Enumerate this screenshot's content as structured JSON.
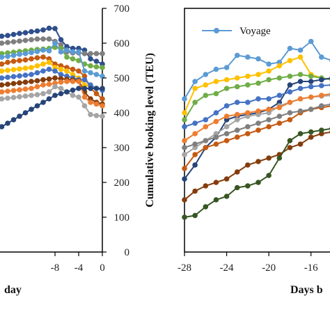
{
  "chart_data": [
    {
      "type": "line",
      "panel": "left",
      "xlabel": "day",
      "ylabel": "",
      "xlim": [
        -17.3,
        0
      ],
      "ylim": [
        0,
        700
      ],
      "xticks": [
        "-8",
        "-4",
        "0"
      ],
      "x": [
        -17,
        -16,
        -15,
        -14,
        -13,
        -12,
        -11,
        -10,
        -9,
        -8,
        -7,
        -6,
        -5,
        -4,
        -3,
        -2,
        -1,
        0
      ],
      "series": [
        {
          "color": "#2e4e8c",
          "values": [
            620,
            622,
            625,
            628,
            630,
            633,
            635,
            638,
            643,
            642,
            610,
            590,
            585,
            585,
            580,
            555,
            548,
            540
          ]
        },
        {
          "color": "#7f7f7f",
          "values": [
            600,
            602,
            604,
            606,
            608,
            610,
            612,
            612,
            612,
            605,
            595,
            575,
            572,
            572,
            570,
            570,
            570,
            570
          ]
        },
        {
          "color": "#70ad47",
          "values": [
            570,
            572,
            574,
            576,
            578,
            580,
            582,
            583,
            585,
            588,
            585,
            560,
            555,
            550,
            540,
            535,
            532,
            530
          ]
        },
        {
          "color": "#5b9bd5",
          "values": [
            560,
            562,
            565,
            568,
            570,
            573,
            576,
            580,
            578,
            600,
            575,
            580,
            575,
            575,
            520,
            515,
            510,
            505
          ]
        },
        {
          "color": "#c55a11",
          "values": [
            540,
            545,
            548,
            550,
            552,
            555,
            558,
            560,
            555,
            540,
            535,
            530,
            525,
            520,
            505,
            470,
            455,
            440
          ]
        },
        {
          "color": "#ffc000",
          "values": [
            520,
            522,
            524,
            526,
            528,
            530,
            535,
            540,
            545,
            530,
            525,
            520,
            510,
            500,
            480,
            475,
            470,
            470
          ]
        },
        {
          "color": "#4472c4",
          "values": [
            500,
            502,
            504,
            506,
            508,
            510,
            515,
            520,
            525,
            520,
            510,
            505,
            500,
            495,
            495,
            480,
            470,
            465
          ]
        },
        {
          "color": "#843c0c",
          "values": [
            480,
            482,
            484,
            486,
            488,
            490,
            492,
            495,
            497,
            500,
            498,
            496,
            494,
            492,
            460,
            440,
            430,
            425
          ]
        },
        {
          "color": "#ed7d31",
          "values": [
            460,
            462,
            464,
            466,
            468,
            470,
            475,
            480,
            482,
            485,
            488,
            490,
            490,
            490,
            445,
            430,
            425,
            420
          ]
        },
        {
          "color": "#a5a5a5",
          "values": [
            440,
            442,
            444,
            446,
            448,
            450,
            452,
            455,
            460,
            475,
            470,
            460,
            450,
            445,
            420,
            395,
            392,
            390
          ]
        },
        {
          "color": "#264478",
          "values": [
            360,
            370,
            380,
            390,
            400,
            410,
            420,
            430,
            440,
            450,
            455,
            460,
            465,
            470,
            470,
            470,
            470,
            470
          ]
        }
      ]
    },
    {
      "type": "line",
      "panel": "right",
      "xlabel": "Days b",
      "ylabel": "Cumulative booking level (TEU)",
      "xlim": [
        -28,
        -13.8
      ],
      "ylim": [
        0,
        700
      ],
      "xticks": [
        "-28",
        "-24",
        "-20",
        "-16"
      ],
      "yticks": [
        "0",
        "100",
        "200",
        "300",
        "400",
        "500",
        "600",
        "700"
      ],
      "legend": {
        "label": "Voyage",
        "position": "top-left"
      },
      "x": [
        -28,
        -27,
        -26,
        -25,
        -24,
        -23,
        -22,
        -21,
        -20,
        -19,
        -18,
        -17,
        -16,
        -15,
        -14
      ],
      "series": [
        {
          "color": "#5b9bd5",
          "values": [
            440,
            490,
            510,
            525,
            530,
            565,
            560,
            555,
            540,
            545,
            585,
            580,
            605,
            560,
            550
          ]
        },
        {
          "color": "#ffc000",
          "values": [
            400,
            470,
            480,
            490,
            495,
            500,
            505,
            510,
            520,
            535,
            550,
            560,
            510,
            500,
            495
          ]
        },
        {
          "color": "#70ad47",
          "values": [
            380,
            430,
            450,
            455,
            470,
            475,
            480,
            485,
            495,
            500,
            505,
            510,
            505,
            500,
            495
          ]
        },
        {
          "color": "#264478",
          "values": [
            210,
            250,
            300,
            330,
            380,
            390,
            395,
            400,
            410,
            430,
            480,
            490,
            490,
            495,
            500
          ]
        },
        {
          "color": "#4472c4",
          "values": [
            360,
            370,
            380,
            400,
            420,
            430,
            430,
            440,
            440,
            450,
            460,
            470,
            475,
            478,
            480
          ]
        },
        {
          "color": "#a5a5a5",
          "values": [
            280,
            300,
            320,
            340,
            360,
            380,
            390,
            395,
            400,
            420,
            430,
            440,
            445,
            448,
            450
          ]
        },
        {
          "color": "#ed7d31",
          "values": [
            320,
            340,
            360,
            375,
            390,
            395,
            400,
            405,
            410,
            415,
            430,
            440,
            445,
            450,
            455
          ]
        },
        {
          "color": "#c55a11",
          "values": [
            240,
            280,
            300,
            310,
            320,
            330,
            340,
            350,
            360,
            370,
            380,
            400,
            410,
            415,
            420
          ]
        },
        {
          "color": "#843c0c",
          "values": [
            150,
            175,
            190,
            200,
            210,
            230,
            250,
            260,
            270,
            280,
            300,
            310,
            330,
            340,
            345
          ]
        },
        {
          "color": "#7f7f7f",
          "values": [
            300,
            310,
            320,
            330,
            340,
            350,
            360,
            370,
            380,
            390,
            400,
            405,
            410,
            420,
            425
          ]
        },
        {
          "color": "#375623",
          "values": [
            100,
            105,
            130,
            150,
            160,
            185,
            190,
            200,
            220,
            270,
            320,
            340,
            345,
            350,
            355
          ]
        }
      ]
    }
  ]
}
